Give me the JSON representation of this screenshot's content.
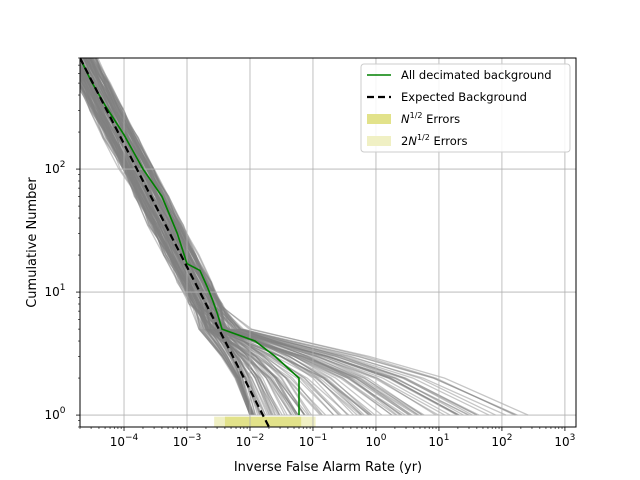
{
  "chart_data": {
    "type": "line",
    "xlabel": "Inverse False Alarm Rate (yr)",
    "ylabel": "Cumulative Number",
    "xscale": "log",
    "yscale": "log",
    "xlim": [
      2e-05,
      1500
    ],
    "ylim": [
      0.8,
      800
    ],
    "grid": true,
    "legend_position": "top-right",
    "x_ticks": [
      {
        "value": 0.0001,
        "base": "10",
        "exp": "−4"
      },
      {
        "value": 0.001,
        "base": "10",
        "exp": "−3"
      },
      {
        "value": 0.01,
        "base": "10",
        "exp": "−2"
      },
      {
        "value": 0.1,
        "base": "10",
        "exp": "−1"
      },
      {
        "value": 1,
        "base": "10",
        "exp": "0"
      },
      {
        "value": 10,
        "base": "10",
        "exp": "1"
      },
      {
        "value": 100,
        "base": "10",
        "exp": "2"
      },
      {
        "value": 1000,
        "base": "10",
        "exp": "3"
      }
    ],
    "y_ticks": [
      {
        "value": 1,
        "base": "10",
        "exp": "0"
      },
      {
        "value": 10,
        "base": "10",
        "exp": "1"
      },
      {
        "value": 100,
        "base": "10",
        "exp": "2"
      }
    ],
    "legend": [
      {
        "label": "All decimated background",
        "kind": "line",
        "color": "#008000"
      },
      {
        "label_main": "N",
        "label_sup": "1/2",
        "label_tail": " Errors",
        "kind": "patch",
        "color": "#e2e28a"
      },
      {
        "label": "Expected Background",
        "kind": "dashed",
        "color": "#000000"
      },
      {
        "label_pre": "2",
        "label_main": "N",
        "label_sup": "1/2",
        "label_tail": " Errors",
        "kind": "patch",
        "color": "#f0f0c4"
      }
    ],
    "series": [
      {
        "name": "All decimated background",
        "color": "#008000",
        "x": [
          2e-05,
          3e-05,
          5e-05,
          0.0001,
          0.0002,
          0.0004,
          0.0007,
          0.001,
          0.0016,
          0.0021,
          0.0025,
          0.003,
          0.0036,
          0.012,
          0.025,
          0.06,
          0.06
        ],
        "y": [
          800,
          520,
          330,
          190,
          100,
          60,
          30,
          17,
          15,
          11,
          8.8,
          6.8,
          5,
          4,
          3,
          2,
          1
        ]
      },
      {
        "name": "Expected Background",
        "color": "#000000",
        "dashed": true,
        "x": [
          2e-05,
          0.02
        ],
        "y": [
          800,
          0.8
        ]
      }
    ],
    "background_color": "#808080",
    "error_band_colors": [
      "#e2e28a",
      "#f0f0c4"
    ]
  }
}
